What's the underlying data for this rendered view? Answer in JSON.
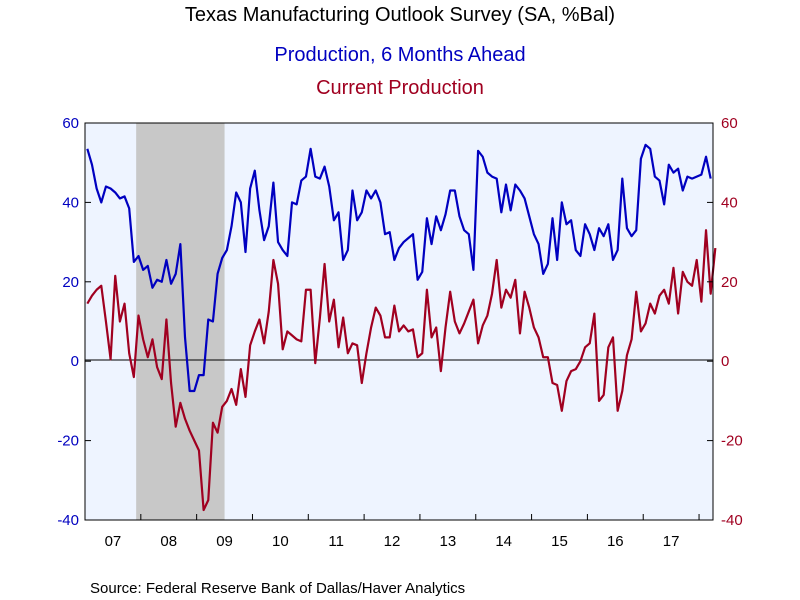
{
  "chart_data": {
    "type": "line",
    "title": "Texas Manufacturing Outlook Survey (SA, %Bal)",
    "series": [
      {
        "name": "Production, 6 Months Ahead",
        "color": "#0000c0",
        "axis": "left",
        "start": "2007-01",
        "values": [
          53.5,
          49.5,
          43.5,
          40,
          44,
          43.5,
          42.5,
          41,
          41.5,
          38.5,
          25,
          26.5,
          23,
          24,
          18.5,
          20.5,
          20,
          25.5,
          19.5,
          22,
          29.5,
          6,
          -7.5,
          -7.5,
          -3.5,
          -3.5,
          10.5,
          10,
          22,
          26,
          28,
          34,
          42.5,
          40,
          27.5,
          43.5,
          48,
          38,
          30.5,
          34,
          45,
          30,
          28,
          26.5,
          40,
          39.5,
          45.5,
          46.5,
          53.5,
          46.5,
          46,
          49,
          44,
          35.5,
          37.5,
          25.5,
          28,
          43,
          35.5,
          37.5,
          43,
          41,
          43,
          40,
          32,
          32.5,
          25.5,
          28.5,
          30,
          31,
          32,
          20.5,
          22.5,
          36,
          29.5,
          36.5,
          33,
          37,
          43,
          43,
          36.5,
          33,
          32,
          23,
          53,
          51.5,
          47.5,
          46.5,
          46,
          37.5,
          44.5,
          38,
          44.5,
          43,
          41,
          36.5,
          32,
          29.5,
          22,
          24.5,
          36,
          25.5,
          40,
          34.5,
          35.5,
          28,
          26.5,
          34.5,
          32,
          28,
          33.5,
          31.5,
          34.5,
          25.5,
          28,
          46,
          33.5,
          31.5,
          33,
          51,
          54.5,
          53.5,
          46.5,
          45.5,
          39.5,
          49.5,
          47.5,
          48.5,
          43,
          46.5,
          46,
          46.5,
          47,
          51.5,
          46
        ]
      },
      {
        "name": "Current Production",
        "color": "#a00020",
        "axis": "right",
        "start": "2007-01",
        "values": [
          14.5,
          16.5,
          18,
          19,
          10,
          0.5,
          21.5,
          10,
          14.5,
          2,
          -4,
          11.5,
          5.5,
          1,
          5.5,
          -1.5,
          -4.5,
          10.5,
          -5.5,
          -16.5,
          -10.5,
          -14.5,
          -17.5,
          -20,
          -22.5,
          -37.5,
          -35,
          -15.5,
          -18,
          -11.5,
          -10,
          -7,
          -11,
          -2,
          -9,
          4,
          7.5,
          10.5,
          4.5,
          12.5,
          25.5,
          19.5,
          3,
          7.5,
          6.5,
          5.5,
          5,
          18,
          18,
          -0.5,
          11,
          24.5,
          10,
          15.5,
          3.5,
          11,
          2,
          4.5,
          4,
          -5.5,
          2,
          8.5,
          13.5,
          11.5,
          6,
          6,
          14,
          7.5,
          9,
          7.5,
          8,
          1,
          2,
          18,
          6,
          8.5,
          -2.5,
          8.5,
          17.5,
          10,
          7,
          9.5,
          12.5,
          15.5,
          4.5,
          9,
          11.5,
          17,
          25.5,
          13.5,
          18,
          16,
          20.5,
          7,
          17.5,
          13.5,
          8.5,
          6,
          1,
          1,
          -5.5,
          -6,
          -12.5,
          -5,
          -2.5,
          -2,
          0,
          3.5,
          4.5,
          12,
          -10,
          -8.5,
          3.5,
          6,
          -12.5,
          -7.5,
          1.5,
          5.5,
          17.5,
          7.5,
          9.5,
          14.5,
          12,
          16.5,
          18,
          14.5,
          23.5,
          12,
          22.5,
          20,
          19,
          25.5,
          15,
          33,
          17,
          28.5
        ]
      }
    ],
    "subtitles": [
      "Production, 6 Months Ahead",
      "Current Production"
    ],
    "x_ticks": [
      "07",
      "08",
      "09",
      "10",
      "11",
      "12",
      "13",
      "14",
      "15",
      "16",
      "17"
    ],
    "y_left": {
      "ylim": [
        -40,
        60
      ],
      "ticks": [
        "60",
        "40",
        "20",
        "0",
        "-20",
        "-40"
      ],
      "color": "#0000c0"
    },
    "y_right": {
      "ylim": [
        -40,
        60
      ],
      "ticks": [
        "60",
        "40",
        "20",
        "0",
        "-20",
        "-40"
      ],
      "color": "#a00020"
    },
    "recession": {
      "start": "2007-12",
      "end": "2009-06"
    },
    "grid": false,
    "plot_background": "#eef4ff",
    "recession_color": "#c8c8c8",
    "source": "Source:  Federal Reserve Bank of Dallas/Haver Analytics"
  }
}
